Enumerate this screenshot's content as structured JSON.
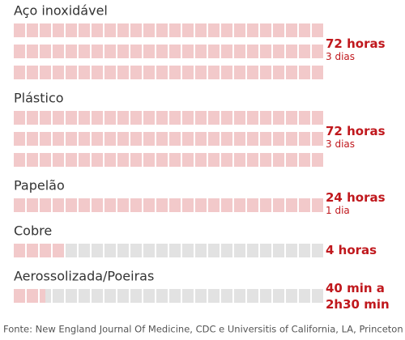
{
  "chart_data": {
    "type": "waffle",
    "categories": [
      "Aço inoxidável",
      "Plástico",
      "Papelão",
      "Cobre",
      "Aerossolizada/Poeiras"
    ],
    "values": [
      72,
      72,
      24,
      4,
      2.5
    ],
    "value_labels": [
      [
        "72 horas"
      ],
      [
        "72 horas"
      ],
      [
        "24 horas"
      ],
      [
        "4 horas"
      ],
      [
        "40 min a",
        "2h30 min"
      ]
    ],
    "sub_labels": [
      "3 dias",
      "3 dias",
      "1 dia",
      null,
      null
    ],
    "color": "#f2c9ca",
    "empty_color": "#e2e2e2",
    "label_color": "#c0181d",
    "source": "Fonte: New England Journal Of Medicine, CDC e Universitis of California, LA, Princeton"
  }
}
